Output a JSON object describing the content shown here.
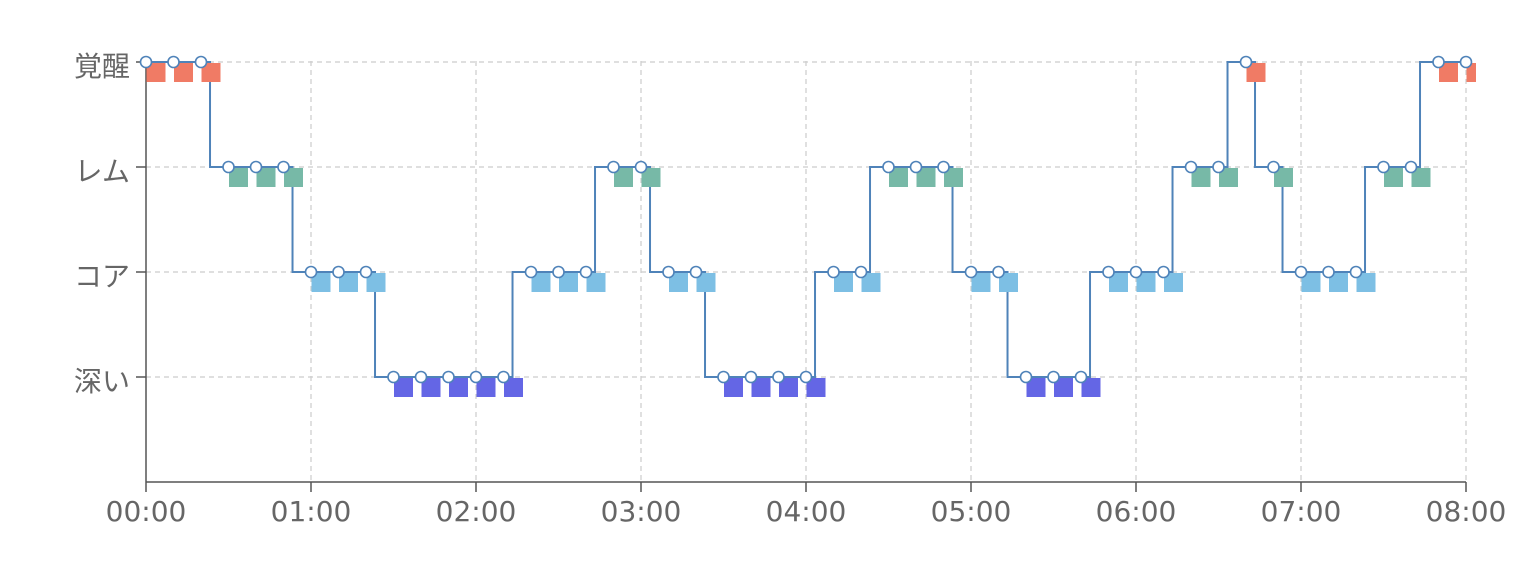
{
  "chart_data": {
    "type": "step-line",
    "title": "",
    "x_unit": "minutes since 00:00",
    "x_range": [
      0,
      480
    ],
    "x_ticks": [
      {
        "value": 0,
        "label": "00:00"
      },
      {
        "value": 60,
        "label": "01:00"
      },
      {
        "value": 120,
        "label": "02:00"
      },
      {
        "value": 180,
        "label": "03:00"
      },
      {
        "value": 240,
        "label": "04:00"
      },
      {
        "value": 300,
        "label": "05:00"
      },
      {
        "value": 360,
        "label": "06:00"
      },
      {
        "value": 420,
        "label": "07:00"
      },
      {
        "value": 480,
        "label": "08:00"
      }
    ],
    "y_levels": [
      {
        "value": 4,
        "label": "覚醒",
        "color": "#f07b65"
      },
      {
        "value": 3,
        "label": "レム",
        "color": "#77b9a7"
      },
      {
        "value": 2,
        "label": "コア",
        "color": "#7dbfe4"
      },
      {
        "value": 1,
        "label": "深い",
        "color": "#6466e5"
      }
    ],
    "y_range": [
      0,
      4
    ],
    "line_color": "#4f83b9",
    "grid": true,
    "points": [
      {
        "t": 0,
        "stage": 4
      },
      {
        "t": 10,
        "stage": 4
      },
      {
        "t": 20,
        "stage": 4
      },
      {
        "t": 30,
        "stage": 3
      },
      {
        "t": 40,
        "stage": 3
      },
      {
        "t": 50,
        "stage": 3
      },
      {
        "t": 60,
        "stage": 2
      },
      {
        "t": 70,
        "stage": 2
      },
      {
        "t": 80,
        "stage": 2
      },
      {
        "t": 90,
        "stage": 1
      },
      {
        "t": 100,
        "stage": 1
      },
      {
        "t": 110,
        "stage": 1
      },
      {
        "t": 120,
        "stage": 1
      },
      {
        "t": 130,
        "stage": 1
      },
      {
        "t": 140,
        "stage": 2
      },
      {
        "t": 150,
        "stage": 2
      },
      {
        "t": 160,
        "stage": 2
      },
      {
        "t": 170,
        "stage": 3
      },
      {
        "t": 180,
        "stage": 3
      },
      {
        "t": 190,
        "stage": 2
      },
      {
        "t": 200,
        "stage": 2
      },
      {
        "t": 210,
        "stage": 1
      },
      {
        "t": 220,
        "stage": 1
      },
      {
        "t": 230,
        "stage": 1
      },
      {
        "t": 240,
        "stage": 1
      },
      {
        "t": 250,
        "stage": 2
      },
      {
        "t": 260,
        "stage": 2
      },
      {
        "t": 270,
        "stage": 3
      },
      {
        "t": 280,
        "stage": 3
      },
      {
        "t": 290,
        "stage": 3
      },
      {
        "t": 300,
        "stage": 2
      },
      {
        "t": 310,
        "stage": 2
      },
      {
        "t": 320,
        "stage": 1
      },
      {
        "t": 330,
        "stage": 1
      },
      {
        "t": 340,
        "stage": 1
      },
      {
        "t": 350,
        "stage": 2
      },
      {
        "t": 360,
        "stage": 2
      },
      {
        "t": 370,
        "stage": 2
      },
      {
        "t": 380,
        "stage": 3
      },
      {
        "t": 390,
        "stage": 3
      },
      {
        "t": 400,
        "stage": 4
      },
      {
        "t": 410,
        "stage": 3
      },
      {
        "t": 420,
        "stage": 2
      },
      {
        "t": 430,
        "stage": 2
      },
      {
        "t": 440,
        "stage": 2
      },
      {
        "t": 450,
        "stage": 3
      },
      {
        "t": 460,
        "stage": 3
      },
      {
        "t": 470,
        "stage": 4
      },
      {
        "t": 480,
        "stage": 4
      }
    ]
  }
}
